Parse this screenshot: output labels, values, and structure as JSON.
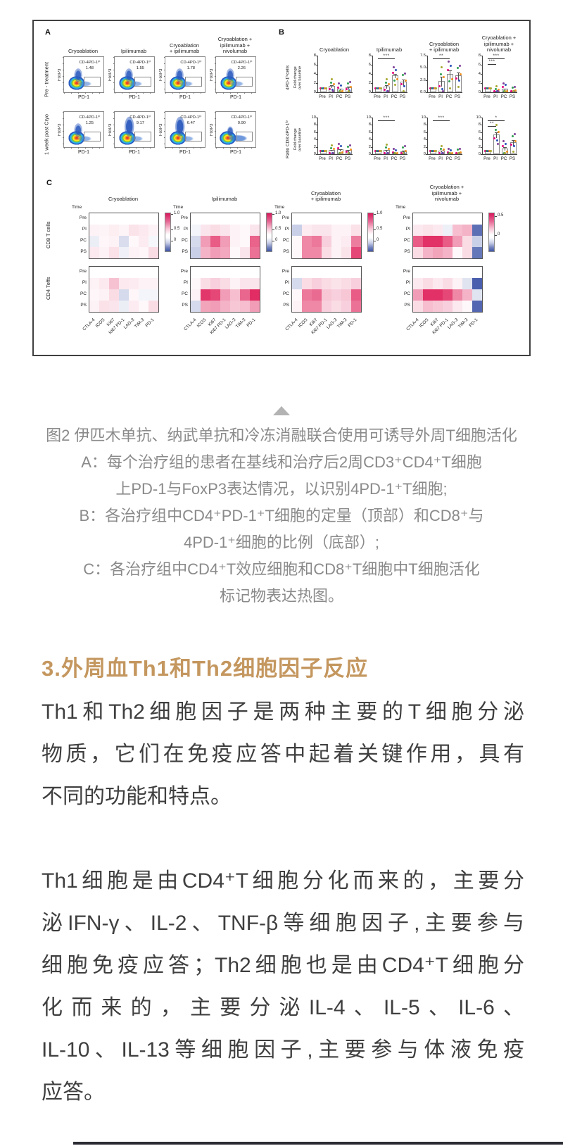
{
  "figure": {
    "border_color": "#404040",
    "treatments": [
      "Cryoablation",
      "Ipilimumab",
      "Cryoablation\n+ ipilimumab",
      "Cryoablation +\nipilimumab +\nnivolumab"
    ],
    "panel_a": {
      "label": "A",
      "row_labels": [
        "Pre - treatment",
        "1 week post Cryo"
      ],
      "y_axis": "FoxP3",
      "x_axis": "PD-1",
      "gate_label": "CD-4PD-1ʰⁱ",
      "plots": [
        [
          {
            "value": "1.48",
            "variant": "normal"
          },
          {
            "value": "1.55",
            "variant": "normal"
          },
          {
            "value": "1.78",
            "variant": "normal"
          },
          {
            "value": "2.26",
            "variant": "normal"
          }
        ],
        [
          {
            "value": "1.25",
            "variant": "normal"
          },
          {
            "value": "9.17",
            "variant": "tall"
          },
          {
            "value": "6.47",
            "variant": "tall"
          },
          {
            "value": "0.90",
            "variant": "wide"
          }
        ]
      ]
    },
    "panel_b": {
      "label": "B",
      "x_categories": [
        "Pre",
        "PI",
        "PC",
        "PS"
      ],
      "dot_colors": [
        "#e5007e",
        "#2e9e4f",
        "#2b50b8",
        "#f29222",
        "#a8a832",
        "#7e3f98"
      ],
      "rows": [
        {
          "y_label_main": "4PD-1ʰⁱcells",
          "y_label_sub": "Fold change\nover baseline",
          "charts": [
            {
              "ymax": 8,
              "ticks": [
                "0",
                "2",
                "4",
                "6",
                "8"
              ],
              "values": [
                1.0,
                1.4,
                0.8,
                1.1
              ],
              "errors": [
                0.05,
                0.3,
                0.15,
                0.3
              ],
              "sig": []
            },
            {
              "ymax": 8,
              "ticks": [
                "0",
                "2",
                "4",
                "6",
                "8"
              ],
              "values": [
                1.0,
                1.3,
                3.7,
                2.3
              ],
              "errors": [
                0.05,
                0.4,
                0.5,
                0.7
              ],
              "sig": [
                {
                  "from": 0,
                  "to": 2,
                  "label": "***",
                  "lane": 0
                }
              ]
            },
            {
              "ymax": 7.5,
              "ticks": [
                "0.0",
                "2.5",
                "5.0",
                "7.5"
              ],
              "values": [
                1.0,
                2.3,
                3.7,
                3.4
              ],
              "errors": [
                0.05,
                1.0,
                0.9,
                0.8
              ],
              "sig": [
                {
                  "from": 0,
                  "to": 2,
                  "label": "**",
                  "lane": 0
                }
              ]
            },
            {
              "ymax": 8,
              "ticks": [
                "0",
                "2",
                "4",
                "6",
                "8"
              ],
              "values": [
                1.0,
                0.35,
                0.8,
                0.35
              ],
              "errors": [
                0.05,
                0.1,
                0.2,
                0.1
              ],
              "sig": [
                {
                  "from": 0,
                  "to": 2,
                  "label": "***",
                  "lane": 0
                },
                {
                  "from": 0,
                  "to": 1,
                  "label": "***",
                  "lane": 1
                }
              ]
            }
          ]
        },
        {
          "y_label_main": "Ratio CD8:4PD-1ʰⁱ",
          "y_label_sub": "Fold change\nover baseline",
          "charts": [
            {
              "ymax": 10,
              "ticks": [
                "0",
                "2",
                "4",
                "6",
                "8",
                "10"
              ],
              "values": [
                1.0,
                1.1,
                1.3,
                1.1
              ],
              "errors": [
                0.05,
                0.2,
                0.25,
                0.3
              ],
              "sig": []
            },
            {
              "ymax": 10,
              "ticks": [
                "0",
                "2",
                "4",
                "6",
                "8",
                "10"
              ],
              "values": [
                1.0,
                1.1,
                0.25,
                0.8
              ],
              "errors": [
                0.05,
                0.25,
                0.1,
                0.35
              ],
              "sig": [
                {
                  "from": 0,
                  "to": 2,
                  "label": "***",
                  "lane": 0
                }
              ]
            },
            {
              "ymax": 10,
              "ticks": [
                "0",
                "2",
                "4",
                "6",
                "8",
                "10"
              ],
              "values": [
                1.0,
                0.9,
                0.25,
                0.45
              ],
              "errors": [
                0.05,
                0.2,
                0.1,
                0.15
              ],
              "sig": [
                {
                  "from": 0,
                  "to": 2,
                  "label": "***",
                  "lane": 0
                }
              ]
            },
            {
              "ymax": 10,
              "ticks": [
                "0",
                "2",
                "4",
                "6",
                "8",
                "10"
              ],
              "values": [
                1.0,
                5.4,
                1.6,
                3.3
              ],
              "errors": [
                0.05,
                0.8,
                0.5,
                0.8
              ],
              "sig": [
                {
                  "from": 0,
                  "to": 2,
                  "label": "*",
                  "lane": 0
                },
                {
                  "from": 0,
                  "to": 1,
                  "label": "**",
                  "lane": 1
                }
              ]
            }
          ]
        }
      ]
    },
    "panel_c": {
      "label": "C",
      "time_label": "Time",
      "row_labels": [
        "Pre",
        "PI",
        "PC",
        "PS"
      ],
      "group_labels": [
        "CD8 T cells",
        "CD4 Teffs"
      ],
      "col_labels": [
        "CTLA-4",
        "ICOS",
        "Ki67",
        "Ki67 PD-1",
        "LAG-3",
        "TIM-3",
        "PD-1"
      ],
      "pos_color": "#e0265e",
      "neg_color": "#3f55a8",
      "heatmaps": [
        {
          "cb_ticks": [
            {
              "t": "1.0",
              "p": 0.0
            },
            {
              "t": "0.5",
              "p": 0.42
            },
            {
              "t": "0",
              "p": 0.74
            }
          ],
          "cd8": [
            [
              0,
              0,
              0,
              0,
              0,
              0,
              0
            ],
            [
              0.06,
              0.05,
              0.08,
              0.05,
              0.13,
              0.1,
              0.06
            ],
            [
              -0.1,
              0.04,
              0.06,
              -0.2,
              0.03,
              0.09,
              -0.05
            ],
            [
              0.1,
              0.06,
              0.14,
              -0.08,
              0.06,
              0.04,
              0.16
            ]
          ],
          "cd4": [
            [
              0,
              0,
              0,
              0,
              0,
              0,
              0
            ],
            [
              0.06,
              0.1,
              0.28,
              0.1,
              0.09,
              0.06,
              0.06
            ],
            [
              0.04,
              0.06,
              0.16,
              -0.22,
              0.04,
              -0.06,
              -0.06
            ],
            [
              0.06,
              0.14,
              0.12,
              -0.1,
              0.09,
              0.03,
              0.16
            ]
          ]
        },
        {
          "cb_ticks": [
            {
              "t": "1.0",
              "p": 0.0
            },
            {
              "t": "0.5",
              "p": 0.42
            },
            {
              "t": "0",
              "p": 0.74
            }
          ],
          "cd8": [
            [
              0,
              0,
              0,
              0,
              0,
              0,
              0
            ],
            [
              -0.06,
              0.12,
              0.16,
              0.12,
              0.06,
              0.03,
              0.12
            ],
            [
              -0.22,
              0.45,
              0.75,
              0.45,
              0.06,
              0.03,
              0.72
            ],
            [
              -0.28,
              0.35,
              0.45,
              0.4,
              0.03,
              0.12,
              0.65
            ]
          ],
          "cd4": [
            [
              0,
              0,
              0,
              0,
              0,
              0,
              0
            ],
            [
              0.03,
              0.16,
              0.22,
              0.16,
              0.06,
              0.12,
              0.12
            ],
            [
              0.06,
              0.92,
              0.85,
              0.45,
              0.3,
              0.7,
              0.97
            ],
            [
              -0.22,
              0.42,
              0.45,
              0.35,
              0.26,
              0.3,
              0.45
            ]
          ]
        },
        {
          "cb_ticks": [
            {
              "t": "1.0",
              "p": 0.0
            },
            {
              "t": "0.5",
              "p": 0.42
            },
            {
              "t": "0",
              "p": 0.74
            }
          ],
          "cd8": [
            [
              0,
              0,
              0,
              0,
              0,
              0,
              0
            ],
            [
              -0.28,
              0.09,
              0.12,
              0.12,
              0.06,
              0.06,
              0.14
            ],
            [
              0.03,
              0.55,
              0.62,
              0.22,
              0.06,
              0.09,
              0.6
            ],
            [
              0.03,
              0.55,
              0.55,
              0.16,
              0.06,
              0.13,
              0.85
            ]
          ],
          "cd4": [
            [
              0,
              0,
              0,
              0,
              0,
              0,
              0
            ],
            [
              -0.22,
              0.16,
              0.22,
              0.16,
              0.13,
              0.16,
              0.22
            ],
            [
              0.03,
              0.62,
              0.68,
              0.26,
              0.22,
              0.26,
              0.75
            ],
            [
              0.06,
              0.55,
              0.55,
              0.22,
              0.16,
              0.22,
              0.65
            ]
          ]
        },
        {
          "cb_ticks": [
            {
              "t": "0.5",
              "p": 0.06
            },
            {
              "t": "0",
              "p": 0.58
            }
          ],
          "cd8": [
            [
              0,
              0,
              0,
              0,
              0,
              0,
              0
            ],
            [
              0.1,
              0.13,
              0.1,
              -0.09,
              0.3,
              0.35,
              -0.85
            ],
            [
              0.75,
              0.95,
              0.95,
              0.75,
              0.45,
              0.16,
              -0.28
            ],
            [
              0.16,
              0.35,
              0.42,
              0.35,
              0.03,
              0.16,
              -0.8
            ]
          ],
          "cd4": [
            [
              0,
              0,
              0,
              0,
              0,
              0,
              0
            ],
            [
              0.1,
              0.16,
              0.1,
              0.16,
              0.06,
              -0.16,
              -0.95
            ],
            [
              0.45,
              0.95,
              0.95,
              0.85,
              0.55,
              0.35,
              -0.16
            ],
            [
              0.16,
              0.3,
              0.26,
              0.22,
              0.1,
              0.03,
              -0.9
            ]
          ]
        }
      ]
    }
  },
  "collapse": {
    "triangle_color": "#b3b3b3"
  },
  "caption": {
    "color": "#8a8a8a",
    "lines": [
      "图2  伊匹木单抗、纳武单抗和冷冻消融联合使用可诱导外周T细胞活化",
      "A：每个治疗组的患者在基线和治疗后2周CD3⁺CD4⁺T细胞",
      "上PD-1与FoxP3表达情况，以识别4PD-1⁺T细胞;",
      "B：各治疗组中CD4⁺PD-1⁺T细胞的定量（顶部）和CD8⁺与",
      "4PD-1⁺细胞的比例（底部）;",
      "C：各治疗组中CD4⁺T效应细胞和CD8⁺T细胞中T细胞活化",
      "标记物表达热图。"
    ]
  },
  "section": {
    "heading": "3.外周血Th1和Th2细胞因子反应",
    "heading_color": "#c4975f",
    "paragraphs": [
      {
        "lines": [
          "Th1和Th2细胞因子是两种主要的T细胞分泌",
          "物质，它们在免疫应答中起着关键作用，具有",
          "不同的功能和特点。"
        ]
      },
      {
        "lines": [
          "Th1细胞是由CD4⁺T细胞分化而来的，主要分",
          "泌IFN-γ、IL-2、TNF-β等细胞因子,主要参与",
          "细胞免疫应答；Th2细胞也是由CD4⁺T细胞分",
          "化而来的，主要分泌IL-4、IL-5、IL-6、",
          "IL-10、IL-13等细胞因子,主要参与体液免疫",
          "应答。"
        ]
      }
    ]
  }
}
